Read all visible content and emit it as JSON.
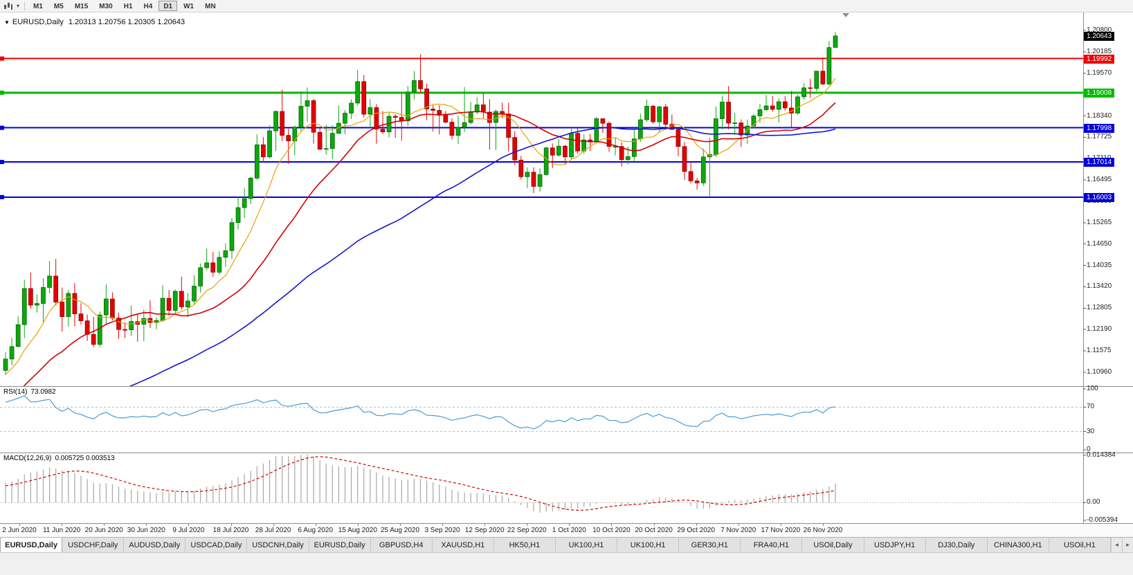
{
  "toolbar": {
    "timeframes": [
      "M1",
      "M5",
      "M15",
      "M30",
      "H1",
      "H4",
      "D1",
      "W1",
      "MN"
    ],
    "active_timeframe": "D1"
  },
  "chart": {
    "title": "EURUSD,Daily",
    "ohlc_text": "1.20313 1.20756 1.20305 1.20643",
    "current_price_label": {
      "text": "1.20643",
      "bg": "#000000",
      "fg": "#FFFFFF"
    },
    "price_axis_labels": [
      "1.20800",
      "1.20185",
      "1.19570",
      "1.18955",
      "1.18340",
      "1.17725",
      "1.17110",
      "1.16495",
      "1.15880",
      "1.15265",
      "1.14650",
      "1.14035",
      "1.13420",
      "1.12805",
      "1.12190",
      "1.11575",
      "1.10960"
    ],
    "horizontal_lines": [
      {
        "label": "1.19992",
        "color": "#F00000",
        "width": 2
      },
      {
        "label": "1.19008",
        "color": "#00BB00",
        "width": 3
      },
      {
        "label": "1.17998",
        "color": "#0000D8",
        "width": 2
      },
      {
        "label": "1.17014",
        "color": "#0000D8",
        "width": 2
      },
      {
        "label": "1.16003",
        "color": "#0000D8",
        "width": 2
      }
    ],
    "date_labels": [
      "2 Jun 2020",
      "11 Jun 2020",
      "20 Jun 2020",
      "30 Jun 2020",
      "9 Jul 2020",
      "18 Jul 2020",
      "28 Jul 2020",
      "6 Aug 2020",
      "15 Aug 2020",
      "25 Aug 2020",
      "3 Sep 2020",
      "12 Sep 2020",
      "22 Sep 2020",
      "1 Oct 2020",
      "10 Oct 2020",
      "20 Oct 2020",
      "29 Oct 2020",
      "7 Nov 2020",
      "17 Nov 2020",
      "26 Nov 2020"
    ]
  },
  "chart_data": {
    "type": "candlestick",
    "symbol": "EURUSD",
    "period": "Daily",
    "price_range": {
      "max": 1.2132,
      "min": 1.1056
    },
    "up_color": "#0CA80C",
    "down_color": "#E60000",
    "ma_lines": [
      {
        "period": 8,
        "color": "#E8A200",
        "width": 1.2
      },
      {
        "period": 21,
        "color": "#D40000",
        "width": 1.6
      },
      {
        "period": 55,
        "color": "#1414D0",
        "width": 1.6
      }
    ],
    "prehistory_closes": [
      1.079,
      1.081,
      1.0825,
      1.084,
      1.0855,
      1.0868,
      1.088,
      1.0895,
      1.091,
      1.0885,
      1.0862,
      1.085,
      1.0838,
      1.086,
      1.0878,
      1.089,
      1.0912,
      1.093,
      1.0945,
      1.0928,
      1.091,
      1.0895,
      1.088,
      1.0865,
      1.085,
      1.0835,
      1.082,
      1.0808,
      1.0795,
      1.0782,
      1.0795,
      1.0815,
      1.0832,
      1.085,
      1.0845,
      1.0838,
      1.0852,
      1.087,
      1.0888,
      1.0905,
      1.0892,
      1.088,
      1.0895,
      1.0915,
      1.0935,
      1.0955,
      1.0978,
      1.0998,
      1.1018,
      1.0995,
      1.097,
      1.0985,
      1.1008,
      1.1032,
      1.106,
      1.1085,
      1.1098,
      1.111,
      1.1095,
      1.1101
    ],
    "ohlc": [
      [
        1.1101,
        1.1154,
        1.1088,
        1.1134
      ],
      [
        1.1134,
        1.1195,
        1.1116,
        1.117
      ],
      [
        1.117,
        1.1257,
        1.1167,
        1.1233
      ],
      [
        1.1233,
        1.1362,
        1.1194,
        1.1337
      ],
      [
        1.1337,
        1.1383,
        1.1279,
        1.1289
      ],
      [
        1.1289,
        1.132,
        1.1268,
        1.1294
      ],
      [
        1.1294,
        1.1366,
        1.124,
        1.134
      ],
      [
        1.134,
        1.1416,
        1.1323,
        1.1373
      ],
      [
        1.1373,
        1.1422,
        1.1288,
        1.1298
      ],
      [
        1.1298,
        1.134,
        1.1213,
        1.1256
      ],
      [
        1.1256,
        1.1333,
        1.1227,
        1.1323
      ],
      [
        1.1323,
        1.1353,
        1.1228,
        1.1264
      ],
      [
        1.1264,
        1.1295,
        1.1233,
        1.1244
      ],
      [
        1.1244,
        1.1262,
        1.1186,
        1.1205
      ],
      [
        1.1205,
        1.1255,
        1.1168,
        1.1176
      ],
      [
        1.1176,
        1.1271,
        1.1168,
        1.1261
      ],
      [
        1.1261,
        1.1349,
        1.1233,
        1.1307
      ],
      [
        1.1307,
        1.1326,
        1.1245,
        1.1252
      ],
      [
        1.1252,
        1.1268,
        1.1192,
        1.1219
      ],
      [
        1.1219,
        1.1239,
        1.1194,
        1.1218
      ],
      [
        1.1218,
        1.1288,
        1.12,
        1.1242
      ],
      [
        1.1242,
        1.1262,
        1.1184,
        1.1234
      ],
      [
        1.1234,
        1.1277,
        1.1185,
        1.1251
      ],
      [
        1.1251,
        1.1303,
        1.1223,
        1.1239
      ],
      [
        1.1239,
        1.1254,
        1.1219,
        1.1245
      ],
      [
        1.1245,
        1.1346,
        1.1241,
        1.1309
      ],
      [
        1.1309,
        1.1333,
        1.1259,
        1.1274
      ],
      [
        1.1274,
        1.1334,
        1.1265,
        1.1329
      ],
      [
        1.1329,
        1.1371,
        1.1276,
        1.1284
      ],
      [
        1.1284,
        1.1324,
        1.1255,
        1.1301
      ],
      [
        1.1301,
        1.1375,
        1.1291,
        1.1344
      ],
      [
        1.1344,
        1.1409,
        1.1326,
        1.1397
      ],
      [
        1.1397,
        1.1452,
        1.139,
        1.1411
      ],
      [
        1.1411,
        1.1442,
        1.1371,
        1.1384
      ],
      [
        1.1384,
        1.1444,
        1.1377,
        1.1427
      ],
      [
        1.1427,
        1.1467,
        1.14,
        1.1446
      ],
      [
        1.1446,
        1.154,
        1.1422,
        1.1527
      ],
      [
        1.1527,
        1.1601,
        1.1507,
        1.157
      ],
      [
        1.157,
        1.1627,
        1.154,
        1.1596
      ],
      [
        1.1596,
        1.1658,
        1.158,
        1.1655
      ],
      [
        1.1655,
        1.1781,
        1.165,
        1.1751
      ],
      [
        1.1751,
        1.1773,
        1.17,
        1.1716
      ],
      [
        1.1716,
        1.1807,
        1.1712,
        1.1791
      ],
      [
        1.1791,
        1.185,
        1.1733,
        1.1847
      ],
      [
        1.1847,
        1.1909,
        1.1762,
        1.1778
      ],
      [
        1.1778,
        1.1797,
        1.1696,
        1.1762
      ],
      [
        1.1762,
        1.1806,
        1.1721,
        1.1802
      ],
      [
        1.1802,
        1.1905,
        1.1791,
        1.1862
      ],
      [
        1.1862,
        1.1916,
        1.1817,
        1.1878
      ],
      [
        1.1878,
        1.1884,
        1.1754,
        1.1787
      ],
      [
        1.1787,
        1.1798,
        1.1736,
        1.1738
      ],
      [
        1.1738,
        1.1808,
        1.1722,
        1.174
      ],
      [
        1.174,
        1.1807,
        1.171,
        1.1784
      ],
      [
        1.1784,
        1.1864,
        1.1782,
        1.1813
      ],
      [
        1.1813,
        1.1851,
        1.1781,
        1.1842
      ],
      [
        1.1842,
        1.1882,
        1.1825,
        1.1871
      ],
      [
        1.1871,
        1.1966,
        1.1864,
        1.1933
      ],
      [
        1.1933,
        1.1952,
        1.1829,
        1.1839
      ],
      [
        1.1839,
        1.1882,
        1.1803,
        1.1858
      ],
      [
        1.1858,
        1.1868,
        1.1754,
        1.1796
      ],
      [
        1.1796,
        1.1848,
        1.1782,
        1.1788
      ],
      [
        1.1788,
        1.1843,
        1.1772,
        1.1833
      ],
      [
        1.1833,
        1.1839,
        1.1771,
        1.183
      ],
      [
        1.183,
        1.19,
        1.1763,
        1.182
      ],
      [
        1.182,
        1.192,
        1.1805,
        1.1903
      ],
      [
        1.1903,
        1.1963,
        1.1881,
        1.1936
      ],
      [
        1.1936,
        1.2011,
        1.1898,
        1.1912
      ],
      [
        1.1912,
        1.1927,
        1.1822,
        1.1854
      ],
      [
        1.1854,
        1.1865,
        1.1789,
        1.185
      ],
      [
        1.185,
        1.1865,
        1.1781,
        1.1839
      ],
      [
        1.1839,
        1.1848,
        1.1813,
        1.1816
      ],
      [
        1.1816,
        1.1827,
        1.1766,
        1.1778
      ],
      [
        1.1778,
        1.1834,
        1.1753,
        1.1801
      ],
      [
        1.1801,
        1.1917,
        1.1788,
        1.1815
      ],
      [
        1.1815,
        1.1874,
        1.1809,
        1.1845
      ],
      [
        1.1845,
        1.1888,
        1.1839,
        1.1866
      ],
      [
        1.1866,
        1.19,
        1.1827,
        1.1845
      ],
      [
        1.1845,
        1.1882,
        1.1737,
        1.1815
      ],
      [
        1.1815,
        1.1853,
        1.1736,
        1.1847
      ],
      [
        1.1847,
        1.1872,
        1.1827,
        1.184
      ],
      [
        1.184,
        1.1872,
        1.1732,
        1.1772
      ],
      [
        1.1772,
        1.179,
        1.1692,
        1.1707
      ],
      [
        1.1707,
        1.1719,
        1.1651,
        1.1659
      ],
      [
        1.1659,
        1.1686,
        1.1626,
        1.1672
      ],
      [
        1.1672,
        1.1686,
        1.1612,
        1.1631
      ],
      [
        1.1631,
        1.1683,
        1.1616,
        1.1665
      ],
      [
        1.1665,
        1.1745,
        1.1661,
        1.1742
      ],
      [
        1.1742,
        1.1755,
        1.1684,
        1.1721
      ],
      [
        1.1721,
        1.1769,
        1.1717,
        1.1747
      ],
      [
        1.1747,
        1.1751,
        1.1695,
        1.1716
      ],
      [
        1.1716,
        1.1797,
        1.1709,
        1.1784
      ],
      [
        1.1784,
        1.1798,
        1.1725,
        1.1733
      ],
      [
        1.1733,
        1.1781,
        1.1725,
        1.1765
      ],
      [
        1.1765,
        1.1782,
        1.1733,
        1.1761
      ],
      [
        1.1761,
        1.1831,
        1.1757,
        1.1826
      ],
      [
        1.1826,
        1.1827,
        1.1785,
        1.1813
      ],
      [
        1.1813,
        1.1818,
        1.1731,
        1.1746
      ],
      [
        1.1746,
        1.1772,
        1.172,
        1.1746
      ],
      [
        1.1746,
        1.1758,
        1.1688,
        1.1708
      ],
      [
        1.1708,
        1.1746,
        1.1694,
        1.1717
      ],
      [
        1.1717,
        1.1794,
        1.1702,
        1.1768
      ],
      [
        1.1768,
        1.184,
        1.176,
        1.1823
      ],
      [
        1.1823,
        1.1881,
        1.1817,
        1.1862
      ],
      [
        1.1862,
        1.1866,
        1.1811,
        1.1817
      ],
      [
        1.1817,
        1.1863,
        1.1787,
        1.186
      ],
      [
        1.186,
        1.1869,
        1.1803,
        1.181
      ],
      [
        1.181,
        1.1838,
        1.1794,
        1.1795
      ],
      [
        1.1795,
        1.18,
        1.1718,
        1.1746
      ],
      [
        1.1746,
        1.1759,
        1.165,
        1.1674
      ],
      [
        1.1674,
        1.1704,
        1.164,
        1.1647
      ],
      [
        1.1647,
        1.1656,
        1.1622,
        1.1641
      ],
      [
        1.1641,
        1.174,
        1.1633,
        1.1716
      ],
      [
        1.1716,
        1.1771,
        1.1603,
        1.1723
      ],
      [
        1.1723,
        1.1861,
        1.1716,
        1.1826
      ],
      [
        1.1826,
        1.1891,
        1.1795,
        1.1874
      ],
      [
        1.1874,
        1.192,
        1.1795,
        1.1813
      ],
      [
        1.1813,
        1.1843,
        1.178,
        1.1814
      ],
      [
        1.1814,
        1.1824,
        1.1745,
        1.1779
      ],
      [
        1.1779,
        1.1823,
        1.1753,
        1.1805
      ],
      [
        1.1805,
        1.1839,
        1.1799,
        1.1834
      ],
      [
        1.1834,
        1.1869,
        1.1814,
        1.1852
      ],
      [
        1.1852,
        1.1894,
        1.1849,
        1.1863
      ],
      [
        1.1863,
        1.1891,
        1.1846,
        1.1853
      ],
      [
        1.1853,
        1.1885,
        1.1816,
        1.1875
      ],
      [
        1.1875,
        1.1891,
        1.1849,
        1.1857
      ],
      [
        1.1857,
        1.1906,
        1.18,
        1.1842
      ],
      [
        1.1842,
        1.1895,
        1.1838,
        1.1889
      ],
      [
        1.1889,
        1.1929,
        1.1881,
        1.1915
      ],
      [
        1.1915,
        1.1941,
        1.1886,
        1.1913
      ],
      [
        1.1913,
        1.1964,
        1.1905,
        1.1963
      ],
      [
        1.1963,
        1.2003,
        1.1923,
        1.1926
      ],
      [
        1.1926,
        1.205,
        1.1923,
        1.2031
      ],
      [
        1.20313,
        1.20756,
        1.20305,
        1.20643
      ]
    ]
  },
  "rsi": {
    "label": "RSI(14)",
    "value": "73.0982",
    "color": "#4A9BD5",
    "scale_labels": [
      "100",
      "70",
      "30",
      "0"
    ],
    "levels": [
      70,
      30
    ]
  },
  "macd": {
    "label": "MACD(12,26,9)",
    "values": "0.005725 0.003513",
    "scale_labels": [
      "0.014384",
      "0.00",
      "-0.005394"
    ],
    "histogram_color": "#A6A6A6",
    "signal_color": "#D40000"
  },
  "tabs": {
    "items": [
      "EURUSD,Daily",
      "USDCHF,Daily",
      "AUDUSD,Daily",
      "USDCAD,Daily",
      "USDCNH,Daily",
      "EURUSD,Daily",
      "GBPUSD,H4",
      "XAUUSD,H1",
      "HK50,H1",
      "UK100,H1",
      "UK100,H1",
      "GER30,H1",
      "FRA40,H1",
      "USOil,Daily",
      "USDJPY,H1",
      "DJ30,Daily",
      "CHINA300,H1",
      "USOil,H1"
    ],
    "active_index": 0,
    "scroll_left": "◂",
    "scroll_right": "▸"
  }
}
